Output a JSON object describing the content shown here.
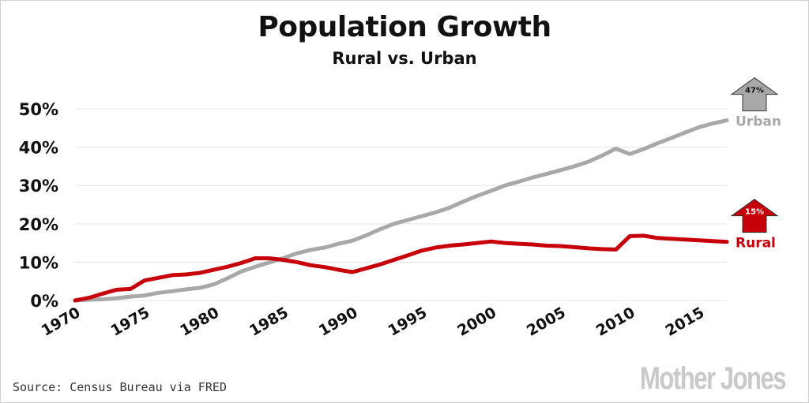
{
  "title": "Population Growth",
  "subtitle": "Rural vs. Urban",
  "source": "Source: Census Bureau via FRED",
  "brand": "Mother Jones",
  "colors": {
    "urban": "#a8a8a8",
    "rural": "#c8000a",
    "grid": "#e6e6e6"
  },
  "chart_data": {
    "type": "line",
    "title": "Population Growth",
    "subtitle": "Rural vs. Urban",
    "xlabel": "",
    "ylabel": "",
    "xlim": [
      1970,
      2017
    ],
    "ylim": [
      0,
      50
    ],
    "x_ticks": [
      1970,
      1975,
      1980,
      1985,
      1990,
      1995,
      2000,
      2005,
      2010,
      2015
    ],
    "y_ticks": [
      0,
      10,
      20,
      30,
      40,
      50
    ],
    "y_tick_labels": [
      "0%",
      "10%",
      "20%",
      "30%",
      "40%",
      "50%"
    ],
    "grid": true,
    "x": [
      1970,
      1971,
      1972,
      1973,
      1974,
      1975,
      1976,
      1977,
      1978,
      1979,
      1980,
      1981,
      1982,
      1983,
      1984,
      1985,
      1986,
      1987,
      1988,
      1989,
      1990,
      1991,
      1992,
      1993,
      1994,
      1995,
      1996,
      1997,
      1998,
      1999,
      2000,
      2001,
      2002,
      2003,
      2004,
      2005,
      2006,
      2007,
      2008,
      2009,
      2010,
      2011,
      2012,
      2013,
      2014,
      2015,
      2016,
      2017
    ],
    "series": [
      {
        "name": "Urban",
        "end_label": "47%",
        "values": [
          0,
          0.2,
          0.3,
          0.6,
          1.0,
          1.3,
          2.0,
          2.4,
          2.9,
          3.3,
          4.2,
          5.8,
          7.6,
          8.8,
          9.9,
          11.0,
          12.3,
          13.2,
          13.8,
          14.8,
          15.6,
          17.0,
          18.6,
          20.0,
          21.0,
          22.0,
          23.0,
          24.2,
          25.8,
          27.3,
          28.6,
          30.0,
          31.0,
          32.1,
          33.0,
          34.0,
          35.0,
          36.2,
          37.8,
          39.6,
          38.2,
          39.5,
          41.0,
          42.4,
          43.8,
          45.2,
          46.2,
          47.0
        ]
      },
      {
        "name": "Rural",
        "end_label": "15%",
        "values": [
          0,
          0.7,
          1.8,
          2.8,
          3.0,
          5.2,
          5.9,
          6.6,
          6.8,
          7.2,
          8.0,
          8.8,
          9.8,
          11.0,
          11.0,
          10.6,
          10.0,
          9.2,
          8.7,
          8.0,
          7.4,
          8.4,
          9.4,
          10.6,
          11.8,
          13.0,
          13.8,
          14.3,
          14.6,
          15.0,
          15.4,
          15.0,
          14.8,
          14.6,
          14.3,
          14.2,
          13.9,
          13.6,
          13.4,
          13.3,
          16.8,
          16.9,
          16.3,
          16.1,
          15.9,
          15.7,
          15.5,
          15.3
        ]
      }
    ]
  }
}
